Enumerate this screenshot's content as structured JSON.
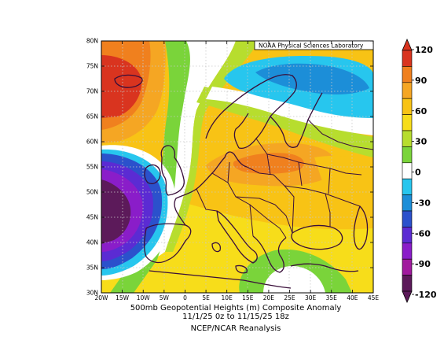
{
  "credit": "NOAA Physical Sciences Laboratory",
  "caption": {
    "line1": "500mb Geopotential Heights (m)   Composite Anomaly",
    "line2": "11/1/25 0z  to 11/15/25 18z",
    "line3": "NCEP/NCAR Reanalysis"
  },
  "lat_ticks": [
    "30N",
    "35N",
    "40N",
    "45N",
    "50N",
    "55N",
    "60N",
    "65N",
    "70N",
    "75N",
    "80N"
  ],
  "lon_ticks": [
    "20W",
    "15W",
    "10W",
    "5W",
    "0",
    "5E",
    "10E",
    "15E",
    "20E",
    "25E",
    "30E",
    "35E",
    "40E",
    "45E"
  ],
  "colorbar": {
    "labels": [
      "120",
      "90",
      "60",
      "30",
      "0",
      "-30",
      "-60",
      "-90",
      "-120"
    ],
    "levels": [
      {
        "range": "105 to 120",
        "color": "#d9341f"
      },
      {
        "range": "90 to 105",
        "color": "#f0801e"
      },
      {
        "range": "75 to 90",
        "color": "#f5a623"
      },
      {
        "range": "60 to 75",
        "color": "#f8c315"
      },
      {
        "range": "45 to 60",
        "color": "#f7dd1a"
      },
      {
        "range": "30 to 45",
        "color": "#b7dd2e"
      },
      {
        "range": "15 to 30",
        "color": "#7ad43a"
      },
      {
        "range": "-15 to 15",
        "color": "#ffffff"
      },
      {
        "range": "-30 to -15",
        "color": "#27c6ee"
      },
      {
        "range": "-45 to -30",
        "color": "#1c8ed8"
      },
      {
        "range": "-60 to -45",
        "color": "#2b51cc"
      },
      {
        "range": "-75 to -60",
        "color": "#5b2bd3"
      },
      {
        "range": "-90 to -75",
        "color": "#8a1dc9"
      },
      {
        "range": "-105 to -90",
        "color": "#a11a9e"
      },
      {
        "range": "-120 to -105",
        "color": "#5c1a5a"
      }
    ]
  },
  "map_colors": {
    "land_outline": "#3a0f3a",
    "grid": "#c8c8c8"
  }
}
